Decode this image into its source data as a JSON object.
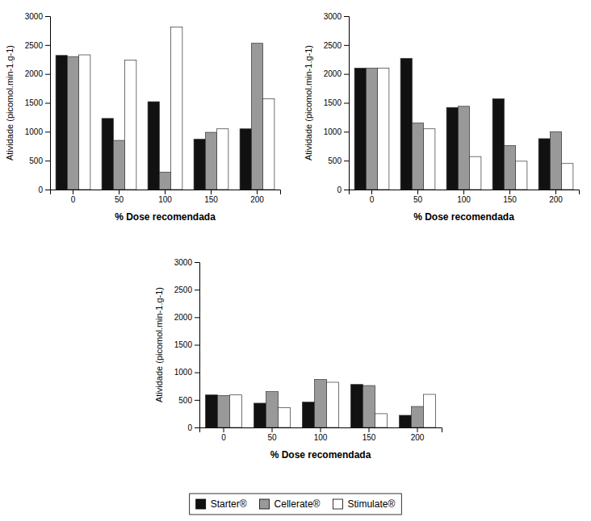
{
  "chart_data": [
    {
      "type": "bar",
      "categories": [
        "0",
        "50",
        "100",
        "150",
        "200"
      ],
      "series": [
        {
          "name": "Starter®",
          "color": "#111111",
          "values": [
            2320,
            1230,
            1520,
            870,
            1050
          ]
        },
        {
          "name": "Cellerate®",
          "color": "#999999",
          "values": [
            2300,
            850,
            300,
            990,
            2530
          ]
        },
        {
          "name": "Stimulate®",
          "color": "#ffffff",
          "values": [
            2330,
            2240,
            2810,
            1050,
            1570
          ]
        }
      ],
      "xlabel": "% Dose recomendada",
      "ylabel": "Atividade (picomol.min-1.g-1)",
      "ylim": [
        0,
        3000
      ],
      "yticks": [
        0,
        500,
        1000,
        1500,
        2000,
        2500,
        3000
      ]
    },
    {
      "type": "bar",
      "categories": [
        "0",
        "50",
        "100",
        "150",
        "200"
      ],
      "series": [
        {
          "name": "Starter®",
          "color": "#111111",
          "values": [
            2100,
            2270,
            1420,
            1570,
            880
          ]
        },
        {
          "name": "Cellerate®",
          "color": "#999999",
          "values": [
            2100,
            1150,
            1440,
            760,
            1000
          ]
        },
        {
          "name": "Stimulate®",
          "color": "#ffffff",
          "values": [
            2100,
            1050,
            570,
            490,
            450
          ]
        }
      ],
      "xlabel": "% Dose recomendada",
      "ylabel": "Atividade (picomol.min-1.g-1)",
      "ylim": [
        0,
        3000
      ],
      "yticks": [
        0,
        500,
        1000,
        1500,
        2000,
        2500,
        3000
      ]
    },
    {
      "type": "bar",
      "categories": [
        "0",
        "50",
        "100",
        "150",
        "200"
      ],
      "series": [
        {
          "name": "Starter®",
          "color": "#111111",
          "values": [
            590,
            440,
            460,
            780,
            220
          ]
        },
        {
          "name": "Cellerate®",
          "color": "#999999",
          "values": [
            580,
            650,
            870,
            760,
            380
          ]
        },
        {
          "name": "Stimulate®",
          "color": "#ffffff",
          "values": [
            590,
            360,
            820,
            250,
            600
          ]
        }
      ],
      "xlabel": "% Dose recomendada",
      "ylabel": "Atividade (picomol.min-1.g-1)",
      "ylim": [
        0,
        3000
      ],
      "yticks": [
        0,
        500,
        1000,
        1500,
        2000,
        2500,
        3000
      ],
      "legend": "bottom"
    }
  ]
}
